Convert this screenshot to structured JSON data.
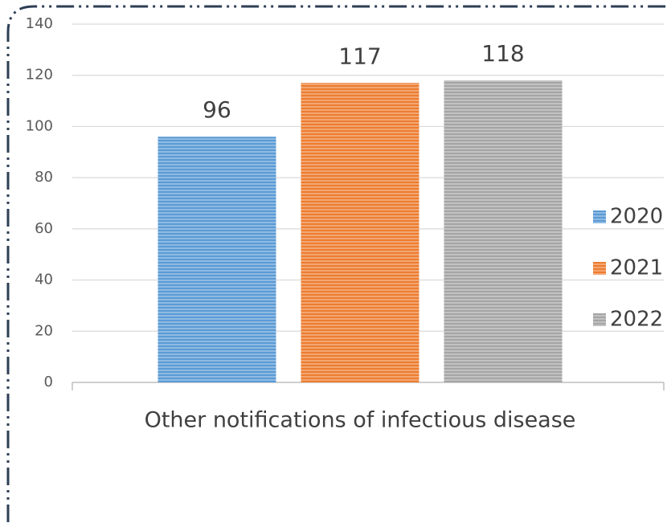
{
  "chart_data": {
    "type": "bar",
    "categories": [
      "Other notifications of infectious disease"
    ],
    "series": [
      {
        "name": "2020",
        "color": "#5b9bd5",
        "values": [
          96
        ]
      },
      {
        "name": "2021",
        "color": "#ed7d31",
        "values": [
          117
        ]
      },
      {
        "name": "2022",
        "color": "#a5a5a5",
        "values": [
          118
        ]
      }
    ],
    "ylim": [
      0,
      140
    ],
    "yticks": [
      0,
      20,
      40,
      60,
      80,
      100,
      120,
      140
    ],
    "grid": true,
    "legend": "right"
  }
}
